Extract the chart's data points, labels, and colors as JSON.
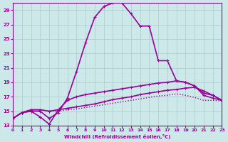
{
  "xlabel": "Windchill (Refroidissement éolien,°C)",
  "xlim": [
    0,
    23
  ],
  "ylim": [
    13,
    30
  ],
  "yticks": [
    13,
    15,
    17,
    19,
    21,
    23,
    25,
    27,
    29
  ],
  "xticks": [
    0,
    1,
    2,
    3,
    4,
    5,
    6,
    7,
    8,
    9,
    10,
    11,
    12,
    13,
    14,
    15,
    16,
    17,
    18,
    19,
    20,
    21,
    22,
    23
  ],
  "background_color": "#cce8e8",
  "grid_color": "#aacccc",
  "line_color": "#990099",
  "lines": [
    {
      "x": [
        0,
        1,
        2,
        3,
        4,
        5,
        6,
        7,
        8,
        9,
        10,
        11,
        12,
        13,
        14,
        15,
        16,
        17,
        18,
        19,
        20,
        21,
        22,
        23
      ],
      "y": [
        14.0,
        14.8,
        15.0,
        15.0,
        14.0,
        14.8,
        16.8,
        20.5,
        24.5,
        28.0,
        29.5,
        30.0,
        30.0,
        28.5,
        26.8,
        26.8,
        22.0,
        22.0,
        19.2,
        19.0,
        18.5,
        17.2,
        16.8,
        16.5
      ],
      "style": "-",
      "marker": "+",
      "lw": 1.2
    },
    {
      "x": [
        0,
        1,
        2,
        3,
        4,
        5,
        6,
        7,
        8,
        9,
        10,
        11,
        12,
        13,
        14,
        15,
        16,
        17,
        18,
        19,
        20,
        21,
        22,
        23
      ],
      "y": [
        14.0,
        14.8,
        15.0,
        14.2,
        13.2,
        15.2,
        16.5,
        17.0,
        17.3,
        17.5,
        17.7,
        17.9,
        18.1,
        18.3,
        18.5,
        18.7,
        18.9,
        19.0,
        19.2,
        19.0,
        18.5,
        17.5,
        17.2,
        16.5
      ],
      "style": "-",
      "marker": "+",
      "lw": 1.2
    },
    {
      "x": [
        0,
        1,
        2,
        3,
        4,
        5,
        6,
        7,
        8,
        9,
        10,
        11,
        12,
        13,
        14,
        15,
        16,
        17,
        18,
        19,
        20,
        21,
        22,
        23
      ],
      "y": [
        14.0,
        14.8,
        15.2,
        15.2,
        15.0,
        15.2,
        15.4,
        15.6,
        15.8,
        16.0,
        16.3,
        16.6,
        16.8,
        17.0,
        17.3,
        17.5,
        17.7,
        17.9,
        18.0,
        18.2,
        18.3,
        17.8,
        17.2,
        16.5
      ],
      "style": "-",
      "marker": "+",
      "lw": 1.2
    },
    {
      "x": [
        0,
        1,
        2,
        3,
        4,
        5,
        6,
        7,
        8,
        9,
        10,
        11,
        12,
        13,
        14,
        15,
        16,
        17,
        18,
        19,
        20,
        21,
        22,
        23
      ],
      "y": [
        14.0,
        14.8,
        15.2,
        15.2,
        15.0,
        15.0,
        15.2,
        15.3,
        15.5,
        15.7,
        15.9,
        16.1,
        16.3,
        16.5,
        16.7,
        16.9,
        17.1,
        17.2,
        17.4,
        17.2,
        16.9,
        16.5,
        16.5,
        16.4
      ],
      "style": ":",
      "marker": null,
      "lw": 1.0
    }
  ]
}
